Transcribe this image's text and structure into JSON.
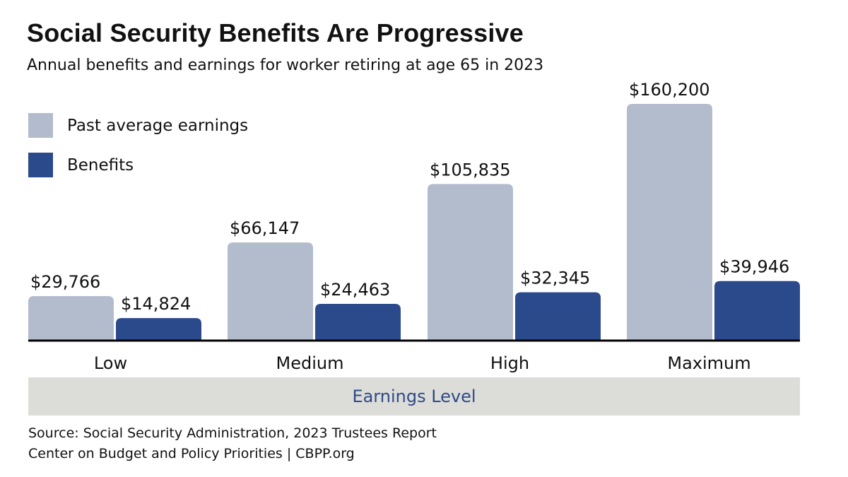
{
  "chart_data": {
    "type": "bar",
    "title": "Social Security Benefits Are Progressive",
    "subtitle": "Annual benefits and earnings for worker retiring at age 65 in 2023",
    "categories": [
      "Low",
      "Medium",
      "High",
      "Maximum"
    ],
    "series": [
      {
        "name": "Past average earnings",
        "values": [
          29766,
          66147,
          105835,
          160200
        ],
        "labels": [
          "$29,766",
          "$66,147",
          "$105,835",
          "$160,200"
        ],
        "color": "#b3bccd"
      },
      {
        "name": "Benefits",
        "values": [
          14824,
          24463,
          32345,
          39946
        ],
        "labels": [
          "$14,824",
          "$24,463",
          "$32,345",
          "$39,946"
        ],
        "color": "#2a4a8c"
      }
    ],
    "xlabel": "Earnings Level",
    "xlabel_color": "#2e4a87",
    "legend": "top-left",
    "grid": false,
    "ylim": [
      0,
      160200
    ]
  },
  "source": {
    "line1": "Source: Social Security Administration, 2023 Trustees Report",
    "line2": "Center on Budget and Policy Priorities | CBPP.org"
  }
}
